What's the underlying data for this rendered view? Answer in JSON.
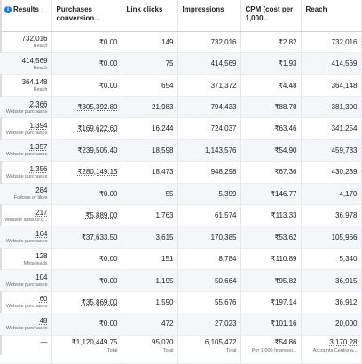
{
  "columns": [
    {
      "label": "Results",
      "sort_arrow": "↓",
      "info_icon": "i"
    },
    {
      "label": "Purchases conversion..."
    },
    {
      "label": "Link clicks"
    },
    {
      "label": "Impressions"
    },
    {
      "label": "CPM (cost per 1,000..."
    },
    {
      "label": "Reach"
    }
  ],
  "rows": [
    {
      "result": "732,016",
      "result_type": "Reach",
      "purchases": "₹0.00",
      "link_clicks": "149",
      "impressions": "732,016",
      "cpm": "₹2.82",
      "reach": "732,016"
    },
    {
      "result": "414,569",
      "result_type": "Reach",
      "purchases": "₹0.00",
      "link_clicks": "75",
      "impressions": "414,569",
      "cpm": "₹1.93",
      "reach": "414,569"
    },
    {
      "result": "364,148",
      "result_type": "Reach",
      "purchases": "₹0.00",
      "link_clicks": "654",
      "impressions": "371,372",
      "cpm": "₹4.48",
      "reach": "364,148"
    },
    {
      "result": "2,366",
      "result_type": "Website purchases",
      "purchases": "₹305,392.80",
      "link_clicks": "21,983",
      "impressions": "794,433",
      "cpm": "₹88.78",
      "reach": "381,300"
    },
    {
      "result": "1,394",
      "result_type": "Website purchases",
      "purchases": "₹169,622.60",
      "link_clicks": "16,244",
      "impressions": "724,037",
      "cpm": "₹63.46",
      "reach": "341,254"
    },
    {
      "result": "1,357",
      "result_type": "Website purchases",
      "purchases": "₹239,505.40",
      "link_clicks": "18,598",
      "impressions": "1,143,576",
      "cpm": "₹54.90",
      "reach": "459,733"
    },
    {
      "result": "1,356",
      "result_type": "Website purchases",
      "purchases": "₹280,149.15",
      "link_clicks": "18,473",
      "impressions": "948,298",
      "cpm": "₹67.36",
      "reach": "430,289"
    },
    {
      "result": "284",
      "result_type": "Follows or likes",
      "purchases": "₹0.00",
      "link_clicks": "55",
      "impressions": "5,399",
      "cpm": "₹146.77",
      "reach": "4,170"
    },
    {
      "result": "217",
      "result_type": "Website adds to c...",
      "purchases": "₹5,889.00",
      "link_clicks": "1,763",
      "impressions": "61,574",
      "cpm": "₹113.33",
      "reach": "36,978"
    },
    {
      "result": "164",
      "result_type": "Website purchases",
      "purchases": "₹37,633.50",
      "link_clicks": "3,615",
      "impressions": "170,385",
      "cpm": "₹53.62",
      "reach": "105,966"
    },
    {
      "result": "128",
      "result_type": "Meta leads",
      "purchases": "₹0.00",
      "link_clicks": "151",
      "impressions": "8,784",
      "cpm": "₹110.89",
      "reach": "5,340"
    },
    {
      "result": "104",
      "result_type": "Website purchases",
      "purchases": "₹0.00",
      "link_clicks": "1,195",
      "impressions": "50,664",
      "cpm": "₹95.82",
      "reach": "36,915"
    },
    {
      "result": "60",
      "result_type": "Website purchases",
      "purchases": "₹35,869.00",
      "link_clicks": "1,590",
      "impressions": "55,676",
      "cpm": "₹197.14",
      "reach": "36,912"
    },
    {
      "result": "48",
      "result_type": "Website purchases",
      "purchases": "₹0.00",
      "link_clicks": "472",
      "impressions": "27,023",
      "cpm": "₹101.16",
      "reach": "20,000"
    }
  ],
  "totals": {
    "result": "—",
    "purchases": "₹1,120,449.75",
    "purchases_note": "Total",
    "link_clicks": "95,070",
    "link_clicks_note": "Total",
    "impressions": "6,105,472",
    "impressions_note": "Total",
    "cpm": "₹54.86",
    "cpm_note": "Per 1,000 Impressi...",
    "reach": "3,170,28",
    "reach_note": "Accounts Centre a..."
  }
}
